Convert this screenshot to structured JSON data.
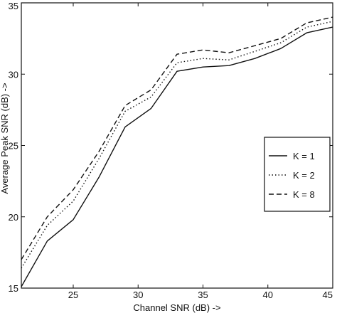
{
  "chart_data": {
    "type": "line",
    "xlabel": "Channel SNR (dB) ->",
    "ylabel": "Average Peak SNR (dB) ->",
    "xlim": [
      21,
      45
    ],
    "ylim": [
      15,
      35
    ],
    "xticks": [
      25,
      30,
      35,
      40,
      45
    ],
    "yticks": [
      15,
      20,
      25,
      30,
      35
    ],
    "grid": false,
    "legend_position": "right",
    "series": [
      {
        "name": "K = 1",
        "style": "solid",
        "x": [
          21,
          23,
          25,
          27,
          29,
          31,
          33,
          35,
          37,
          39,
          41,
          43,
          45
        ],
        "y": [
          15.1,
          18.3,
          19.8,
          22.8,
          26.3,
          27.6,
          30.2,
          30.5,
          30.6,
          31.1,
          31.8,
          32.9,
          33.3
        ]
      },
      {
        "name": "K = 2",
        "style": "dotted",
        "x": [
          21,
          23,
          25,
          27,
          29,
          31,
          33,
          35,
          37,
          39,
          41,
          43,
          45
        ],
        "y": [
          16.4,
          19.4,
          21.1,
          24.1,
          27.4,
          28.4,
          30.8,
          31.1,
          31.0,
          31.6,
          32.2,
          33.3,
          33.7
        ]
      },
      {
        "name": "K = 8",
        "style": "dashed",
        "x": [
          21,
          23,
          25,
          27,
          29,
          31,
          33,
          35,
          37,
          39,
          41,
          43,
          45
        ],
        "y": [
          17.0,
          20.0,
          21.9,
          24.6,
          27.8,
          28.9,
          31.4,
          31.7,
          31.5,
          32.0,
          32.5,
          33.6,
          34.0
        ]
      }
    ]
  }
}
